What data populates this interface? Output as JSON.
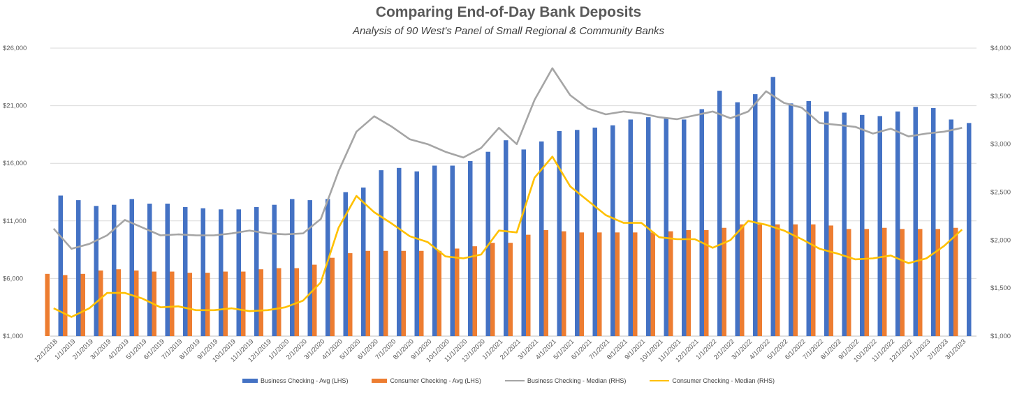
{
  "chart_data": {
    "type": "bar",
    "title": "Comparing End-of-Day Bank Deposits",
    "subtitle": "Analysis of 90 West's Panel of Small Regional & Community Banks",
    "categories": [
      "12/1/2018",
      "1/1/2019",
      "2/1/2019",
      "3/1/2019",
      "4/1/2019",
      "5/1/2019",
      "6/1/2019",
      "7/1/2019",
      "8/1/2019",
      "9/1/2019",
      "10/1/2019",
      "11/1/2019",
      "12/1/2019",
      "1/1/2020",
      "2/1/2020",
      "3/1/2020",
      "4/1/2020",
      "5/1/2020",
      "6/1/2020",
      "7/1/2020",
      "8/1/2020",
      "9/1/2020",
      "10/1/2020",
      "11/1/2020",
      "12/1/2020",
      "1/1/2021",
      "2/1/2021",
      "3/1/2021",
      "4/1/2021",
      "5/1/2021",
      "6/1/2021",
      "7/1/2021",
      "8/1/2021",
      "9/1/2021",
      "10/1/2021",
      "11/1/2021",
      "12/1/2021",
      "1/1/2022",
      "2/1/2022",
      "3/1/2022",
      "4/1/2022",
      "5/1/2022",
      "6/1/2022",
      "7/1/2022",
      "8/1/2022",
      "9/1/2022",
      "10/1/2022",
      "11/1/2022",
      "12/1/2022",
      "1/1/2023",
      "2/1/2023",
      "3/1/2023"
    ],
    "left_axis": {
      "min": 1000,
      "max": 26000,
      "ticks": [
        "$1,000",
        "$6,000",
        "$11,000",
        "$16,000",
        "$21,000",
        "$26,000"
      ],
      "tick_values": [
        1000,
        6000,
        11000,
        16000,
        21000,
        26000
      ]
    },
    "right_axis": {
      "min": 1000,
      "max": 4000,
      "ticks": [
        "$1,000",
        "$1,500",
        "$2,000",
        "$2,500",
        "$3,000",
        "$3,500",
        "$4,000"
      ],
      "tick_values": [
        1000,
        1500,
        2000,
        2500,
        3000,
        3500,
        4000
      ]
    },
    "series": [
      {
        "name": "Business Checking - Avg (LHS)",
        "type": "bar",
        "axis": "left",
        "color": "#4472C4",
        "values": [
          13200,
          12800,
          12300,
          12400,
          12900,
          12500,
          12500,
          12200,
          12100,
          12000,
          12000,
          12200,
          12400,
          12900,
          12800,
          12900,
          13500,
          13900,
          15400,
          15600,
          15300,
          15800,
          15800,
          16200,
          17000,
          18000,
          17200,
          17900,
          18800,
          18900,
          19100,
          19300,
          19800,
          20000,
          19900,
          19800,
          20700,
          22300,
          21300,
          22000,
          23500,
          21200,
          21400,
          20500,
          20400,
          20200,
          20100,
          20500,
          20900,
          20800,
          19800,
          19500
        ]
      },
      {
        "name": "Consumer Checking - Avg (LHS)",
        "type": "bar",
        "axis": "left",
        "color": "#ED7D31",
        "values": [
          6400,
          6300,
          6400,
          6700,
          6800,
          6700,
          6600,
          6600,
          6500,
          6500,
          6600,
          6600,
          6800,
          6900,
          6900,
          7200,
          7800,
          8200,
          8400,
          8400,
          8400,
          8400,
          8400,
          8600,
          8800,
          9100,
          9100,
          9800,
          10200,
          10100,
          10000,
          10000,
          10000,
          10000,
          10000,
          10100,
          10200,
          10200,
          10400,
          10700,
          10700,
          10700,
          10700,
          10700,
          10600,
          10300,
          10300,
          10400,
          10300,
          10300,
          10300,
          10400
        ]
      },
      {
        "name": "Business Checking - Median (RHS)",
        "type": "line",
        "axis": "right",
        "color": "#A5A5A5",
        "values": [
          2120,
          1910,
          1960,
          2050,
          2210,
          2130,
          2050,
          2060,
          2050,
          2050,
          2070,
          2100,
          2070,
          2060,
          2070,
          2220,
          2720,
          3130,
          3290,
          3180,
          3050,
          3000,
          2920,
          2860,
          2960,
          3170,
          3000,
          3460,
          3790,
          3510,
          3370,
          3310,
          3340,
          3320,
          3280,
          3260,
          3300,
          3340,
          3270,
          3340,
          3550,
          3430,
          3380,
          3220,
          3200,
          3180,
          3110,
          3160,
          3080,
          3110,
          3130,
          3170
        ]
      },
      {
        "name": "Consumer Checking - Median (RHS)",
        "type": "line",
        "axis": "right",
        "color": "#FFC000",
        "values": [
          1290,
          1200,
          1290,
          1450,
          1450,
          1390,
          1300,
          1310,
          1270,
          1270,
          1290,
          1260,
          1270,
          1300,
          1370,
          1560,
          2130,
          2460,
          2290,
          2170,
          2040,
          1980,
          1830,
          1810,
          1850,
          2100,
          2080,
          2650,
          2870,
          2560,
          2410,
          2260,
          2180,
          2180,
          2030,
          2010,
          2010,
          1920,
          2000,
          2200,
          2160,
          2100,
          2010,
          1910,
          1860,
          1800,
          1810,
          1840,
          1760,
          1810,
          1940,
          2110
        ]
      }
    ],
    "legend_position": "bottom"
  }
}
